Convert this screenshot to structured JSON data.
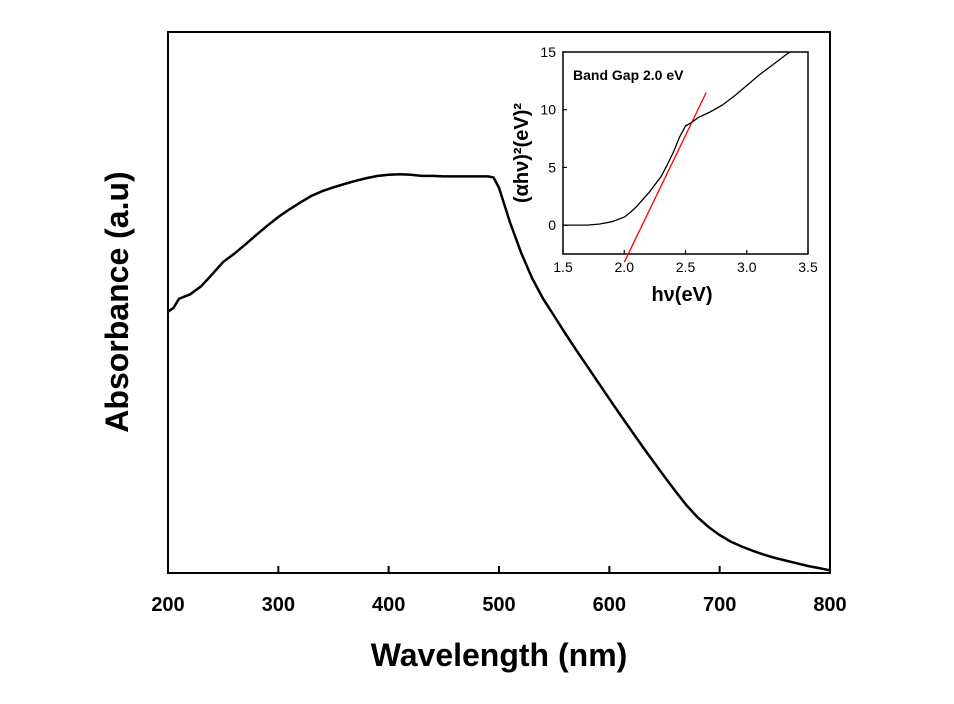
{
  "chart_data": [
    {
      "type": "line",
      "xlabel": "Wavelength (nm)",
      "ylabel": "Absorbance (a.u)",
      "xlim": [
        200,
        800
      ],
      "x_ticks": [
        "200",
        "300",
        "400",
        "500",
        "600",
        "700",
        "800"
      ],
      "y_ticks": [],
      "ylim": [
        0,
        1
      ],
      "grid": false,
      "series": [
        {
          "x": [
            200,
            205,
            210,
            220,
            230,
            240,
            250,
            260,
            270,
            280,
            290,
            300,
            310,
            320,
            330,
            340,
            350,
            360,
            370,
            380,
            390,
            400,
            410,
            420,
            430,
            440,
            450,
            460,
            470,
            480,
            490,
            495,
            500,
            505,
            510,
            520,
            530,
            540,
            550,
            560,
            570,
            580,
            590,
            600,
            610,
            620,
            630,
            640,
            650,
            660,
            670,
            680,
            690,
            700,
            710,
            720,
            730,
            740,
            750,
            760,
            770,
            780,
            790,
            800
          ],
          "y": [
            0.483,
            0.49,
            0.507,
            0.515,
            0.53,
            0.552,
            0.575,
            0.59,
            0.607,
            0.625,
            0.642,
            0.658,
            0.672,
            0.685,
            0.697,
            0.706,
            0.713,
            0.719,
            0.725,
            0.73,
            0.734,
            0.736,
            0.737,
            0.736,
            0.734,
            0.734,
            0.733,
            0.733,
            0.733,
            0.733,
            0.733,
            0.731,
            0.712,
            0.68,
            0.648,
            0.592,
            0.545,
            0.507,
            0.475,
            0.443,
            0.412,
            0.382,
            0.352,
            0.322,
            0.292,
            0.263,
            0.234,
            0.206,
            0.178,
            0.151,
            0.125,
            0.103,
            0.085,
            0.07,
            0.058,
            0.049,
            0.041,
            0.034,
            0.028,
            0.023,
            0.018,
            0.013,
            0.009,
            0.005
          ]
        }
      ]
    },
    {
      "type": "line",
      "xlabel": "hν(eV)",
      "ylabel": "(αhν)²(eV)²",
      "xlim": [
        1.5,
        3.5
      ],
      "ylim": [
        -2.5,
        15
      ],
      "x_ticks": [
        "1.5",
        "2.0",
        "2.5",
        "3.0",
        "3.5"
      ],
      "y_ticks": [
        "0",
        "5",
        "10",
        "15"
      ],
      "annotation": "Band Gap 2.0 eV",
      "series": [
        {
          "color": "#000000",
          "x": [
            1.5,
            1.6,
            1.7,
            1.8,
            1.9,
            2.0,
            2.05,
            2.1,
            2.15,
            2.2,
            2.25,
            2.3,
            2.35,
            2.4,
            2.45,
            2.5,
            2.55,
            2.6,
            2.7,
            2.8,
            2.9,
            3.0,
            3.1,
            3.2,
            3.3,
            3.35
          ],
          "y": [
            0.0,
            0.0,
            0.0,
            0.1,
            0.3,
            0.7,
            1.1,
            1.6,
            2.2,
            2.8,
            3.5,
            4.2,
            5.2,
            6.3,
            7.6,
            8.6,
            8.9,
            9.3,
            9.8,
            10.4,
            11.2,
            12.1,
            13.0,
            13.8,
            14.6,
            15.0
          ]
        },
        {
          "color": "#ff0000",
          "x": [
            2.0,
            2.67
          ],
          "y": [
            -3.2,
            11.5
          ]
        }
      ]
    }
  ]
}
